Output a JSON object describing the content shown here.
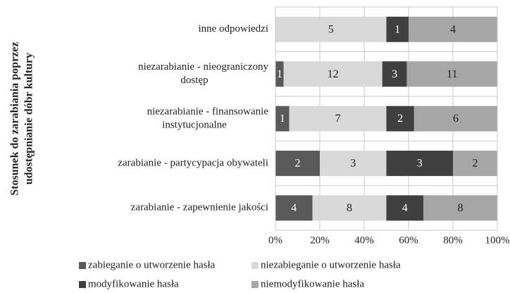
{
  "chart_data": {
    "type": "bar",
    "orientation": "horizontal",
    "stacking": "percent",
    "y_axis_title": [
      "Stosunek do zarabiania poprzez",
      "udostępnianie dóbr kultury"
    ],
    "categories": [
      [
        "inne odpowiedzi"
      ],
      [
        "niezarabianie - nieograniczony",
        "dostęp"
      ],
      [
        "niezarabianie - finansowanie",
        "instytucjonalne"
      ],
      [
        "zarabianie - partycypacja obywateli"
      ],
      [
        "zarabianie - zapewnienie jakości"
      ]
    ],
    "series": [
      {
        "name": "zabieganie o utworzenie hasła",
        "color": "#595959",
        "values": [
          0,
          1,
          1,
          2,
          4
        ]
      },
      {
        "name": "niezabieganie o utworzenie hasła",
        "color": "#d9d9d9",
        "values": [
          5,
          12,
          7,
          3,
          8
        ]
      },
      {
        "name": "modyfikowanie hasła",
        "color": "#404040",
        "values": [
          1,
          3,
          2,
          3,
          4
        ]
      },
      {
        "name": "niemodyfikowanie hasła",
        "color": "#a6a6a6",
        "values": [
          4,
          11,
          6,
          2,
          8
        ]
      }
    ],
    "xlim": [
      0,
      100
    ],
    "xticks": [
      {
        "value": 0,
        "label": "0%"
      },
      {
        "value": 20,
        "label": "20%"
      },
      {
        "value": 40,
        "label": "40%"
      },
      {
        "value": 60,
        "label": "60%"
      },
      {
        "value": 80,
        "label": "80%"
      },
      {
        "value": 100,
        "label": "100%"
      }
    ],
    "grid": true
  }
}
